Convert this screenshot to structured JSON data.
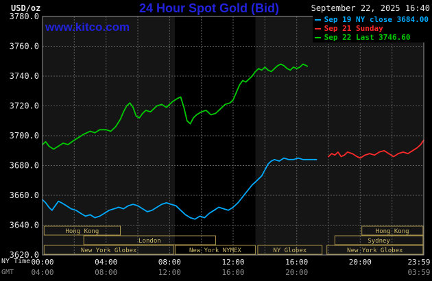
{
  "header": {
    "units": "USD/oz",
    "title": "24 Hour Spot Gold (Bid)",
    "datetime": "September 22, 2025 16:40",
    "watermark": "www.kitco.com"
  },
  "legend": [
    {
      "label": "Sep 19 NY close 3684.00",
      "color": "#00aaff"
    },
    {
      "label": "Sep 21 Sunday",
      "color": "#ff2a2a"
    },
    {
      "label": "Sep 22 Last 3746.60",
      "color": "#00cc00"
    }
  ],
  "axes": {
    "x_axis_label": "NY Time",
    "gmt_axis_label": "GMT",
    "y_ticks": [
      {
        "value": 3780,
        "label": "3780.0"
      },
      {
        "value": 3760,
        "label": "3760.0"
      },
      {
        "value": 3740,
        "label": "3740.0"
      },
      {
        "value": 3720,
        "label": "3720.0"
      },
      {
        "value": 3700,
        "label": "3700.0"
      },
      {
        "value": 3680,
        "label": "3680.0"
      },
      {
        "value": 3660,
        "label": "3660.0"
      },
      {
        "value": 3640,
        "label": "3640.0"
      },
      {
        "value": 3620,
        "label": "3620.0"
      }
    ],
    "x_ticks": [
      {
        "hour": 0,
        "label": "00:00"
      },
      {
        "hour": 4,
        "label": "04:00"
      },
      {
        "hour": 8,
        "label": "08:00"
      },
      {
        "hour": 12,
        "label": "12:00"
      },
      {
        "hour": 16,
        "label": "16:00"
      },
      {
        "hour": 20,
        "label": "20:00"
      },
      {
        "hour": 24,
        "label": "23:59"
      }
    ],
    "gmt_ticks": [
      {
        "hour": 0,
        "label": "04:00"
      },
      {
        "hour": 4,
        "label": "08:00"
      },
      {
        "hour": 8,
        "label": "12:00"
      },
      {
        "hour": 12,
        "label": "16:00"
      },
      {
        "hour": 16,
        "label": "20:00"
      },
      {
        "hour": 24,
        "label": "03:59"
      }
    ]
  },
  "sessions": [
    {
      "label": "Hong Kong",
      "row": 0,
      "start": 0.1,
      "end": 4.9
    },
    {
      "label": "Hong Kong",
      "row": 0,
      "start": 20.1,
      "end": 23.95
    },
    {
      "label": "London",
      "row": 1,
      "start": 2.6,
      "end": 10.9
    },
    {
      "label": "Sydney",
      "row": 1,
      "start": 18.4,
      "end": 23.95
    },
    {
      "label": "New York Globex",
      "row": 2,
      "start": 0.1,
      "end": 8.25
    },
    {
      "label": "New York NYMEX",
      "row": 2,
      "start": 8.35,
      "end": 13.4
    },
    {
      "label": "NY Globex",
      "row": 2,
      "start": 13.55,
      "end": 17.6
    },
    {
      "label": "New York Globex",
      "row": 2,
      "start": 17.9,
      "end": 23.95
    }
  ],
  "chart_data": {
    "type": "line",
    "title": "24 Hour Spot Gold (Bid)",
    "ylabel": "USD/oz",
    "xlabel": "NY Time (hours 00:00-23:59)",
    "ylim": [
      3620,
      3780
    ],
    "xlim": [
      0,
      24
    ],
    "y_grid_step": 20,
    "x_grid_step": 2,
    "grid": true,
    "legend_position": "top-right",
    "nymex_highlight_band": [
      8.33,
      13.4
    ],
    "series": [
      {
        "name": "Sep 19 NY close",
        "close": 3684.0,
        "color": "#00aaff",
        "points": [
          [
            0,
            3657
          ],
          [
            0.2,
            3655
          ],
          [
            0.4,
            3652
          ],
          [
            0.6,
            3650
          ],
          [
            0.8,
            3653
          ],
          [
            1,
            3656
          ],
          [
            1.2,
            3655
          ],
          [
            1.5,
            3653
          ],
          [
            1.8,
            3651
          ],
          [
            2.1,
            3650
          ],
          [
            2.4,
            3648
          ],
          [
            2.7,
            3646
          ],
          [
            3,
            3647
          ],
          [
            3.3,
            3645
          ],
          [
            3.6,
            3646
          ],
          [
            3.9,
            3648
          ],
          [
            4.2,
            3650
          ],
          [
            4.5,
            3651
          ],
          [
            4.8,
            3652
          ],
          [
            5.1,
            3651
          ],
          [
            5.4,
            3653
          ],
          [
            5.7,
            3654
          ],
          [
            6,
            3653
          ],
          [
            6.3,
            3651
          ],
          [
            6.6,
            3649
          ],
          [
            6.9,
            3650
          ],
          [
            7.2,
            3652
          ],
          [
            7.5,
            3654
          ],
          [
            7.8,
            3655
          ],
          [
            8.1,
            3654
          ],
          [
            8.4,
            3653
          ],
          [
            8.7,
            3650
          ],
          [
            9,
            3647
          ],
          [
            9.3,
            3645
          ],
          [
            9.6,
            3644
          ],
          [
            9.9,
            3646
          ],
          [
            10.2,
            3645
          ],
          [
            10.5,
            3648
          ],
          [
            10.8,
            3650
          ],
          [
            11.1,
            3652
          ],
          [
            11.4,
            3651
          ],
          [
            11.7,
            3650
          ],
          [
            12,
            3652
          ],
          [
            12.3,
            3655
          ],
          [
            12.6,
            3659
          ],
          [
            12.9,
            3663
          ],
          [
            13.2,
            3667
          ],
          [
            13.5,
            3670
          ],
          [
            13.8,
            3673
          ],
          [
            14,
            3677
          ],
          [
            14.2,
            3681
          ],
          [
            14.4,
            3683
          ],
          [
            14.6,
            3684
          ],
          [
            14.9,
            3683
          ],
          [
            15.2,
            3685
          ],
          [
            15.5,
            3684
          ],
          [
            15.8,
            3684
          ],
          [
            16.1,
            3685
          ],
          [
            16.4,
            3684
          ],
          [
            16.7,
            3684
          ],
          [
            17,
            3684
          ],
          [
            17.25,
            3684
          ]
        ]
      },
      {
        "name": "Sep 21 Sunday",
        "color": "#ff2a2a",
        "points": [
          [
            18,
            3686
          ],
          [
            18.2,
            3688
          ],
          [
            18.4,
            3687
          ],
          [
            18.6,
            3689
          ],
          [
            18.8,
            3686
          ],
          [
            19,
            3687
          ],
          [
            19.2,
            3689
          ],
          [
            19.5,
            3688
          ],
          [
            19.8,
            3686
          ],
          [
            20,
            3685
          ],
          [
            20.3,
            3687
          ],
          [
            20.6,
            3688
          ],
          [
            20.9,
            3687
          ],
          [
            21.2,
            3689
          ],
          [
            21.5,
            3690
          ],
          [
            21.8,
            3688
          ],
          [
            22.1,
            3686
          ],
          [
            22.4,
            3688
          ],
          [
            22.7,
            3689
          ],
          [
            23,
            3688
          ],
          [
            23.3,
            3690
          ],
          [
            23.6,
            3692
          ],
          [
            23.8,
            3694
          ],
          [
            24,
            3697
          ]
        ]
      },
      {
        "name": "Sep 22 Last",
        "last": 3746.6,
        "color": "#00cc00",
        "points": [
          [
            0,
            3694
          ],
          [
            0.2,
            3696
          ],
          [
            0.4,
            3693
          ],
          [
            0.7,
            3691
          ],
          [
            1,
            3693
          ],
          [
            1.3,
            3695
          ],
          [
            1.6,
            3694
          ],
          [
            2,
            3697
          ],
          [
            2.3,
            3699
          ],
          [
            2.6,
            3701
          ],
          [
            3,
            3703
          ],
          [
            3.3,
            3702
          ],
          [
            3.6,
            3704
          ],
          [
            4,
            3704
          ],
          [
            4.3,
            3703
          ],
          [
            4.6,
            3706
          ],
          [
            4.9,
            3711
          ],
          [
            5.1,
            3716
          ],
          [
            5.3,
            3720
          ],
          [
            5.5,
            3722
          ],
          [
            5.7,
            3719
          ],
          [
            5.9,
            3713
          ],
          [
            6.1,
            3712
          ],
          [
            6.3,
            3715
          ],
          [
            6.5,
            3717
          ],
          [
            6.8,
            3716
          ],
          [
            7,
            3718
          ],
          [
            7.2,
            3720
          ],
          [
            7.5,
            3721
          ],
          [
            7.8,
            3719
          ],
          [
            8,
            3721
          ],
          [
            8.2,
            3723
          ],
          [
            8.5,
            3725
          ],
          [
            8.7,
            3726
          ],
          [
            8.9,
            3719
          ],
          [
            9.1,
            3710
          ],
          [
            9.3,
            3708
          ],
          [
            9.5,
            3712
          ],
          [
            9.7,
            3714
          ],
          [
            10,
            3716
          ],
          [
            10.3,
            3717
          ],
          [
            10.6,
            3714
          ],
          [
            10.9,
            3715
          ],
          [
            11.2,
            3718
          ],
          [
            11.5,
            3721
          ],
          [
            11.8,
            3722
          ],
          [
            12,
            3724
          ],
          [
            12.2,
            3729
          ],
          [
            12.4,
            3734
          ],
          [
            12.6,
            3737
          ],
          [
            12.8,
            3736
          ],
          [
            13,
            3738
          ],
          [
            13.2,
            3740
          ],
          [
            13.4,
            3743
          ],
          [
            13.6,
            3745
          ],
          [
            13.8,
            3744
          ],
          [
            14,
            3746
          ],
          [
            14.2,
            3744
          ],
          [
            14.4,
            3743
          ],
          [
            14.6,
            3745
          ],
          [
            14.8,
            3747
          ],
          [
            15,
            3748
          ],
          [
            15.2,
            3747
          ],
          [
            15.4,
            3745
          ],
          [
            15.6,
            3744
          ],
          [
            15.8,
            3746
          ],
          [
            16,
            3745
          ],
          [
            16.2,
            3746
          ],
          [
            16.4,
            3748
          ],
          [
            16.67,
            3746.6
          ]
        ]
      }
    ]
  },
  "colors": {
    "background": "#000000",
    "plot_background": "#151515",
    "band": "#000000",
    "grid": "#5e5e5e",
    "border": "#999999",
    "title_blue": "#2222dd",
    "session_box": "#a8924b",
    "session_text": "#cdb96a",
    "axis_text": "#e8e8e8",
    "gmt_text": "#8c8c8c"
  }
}
